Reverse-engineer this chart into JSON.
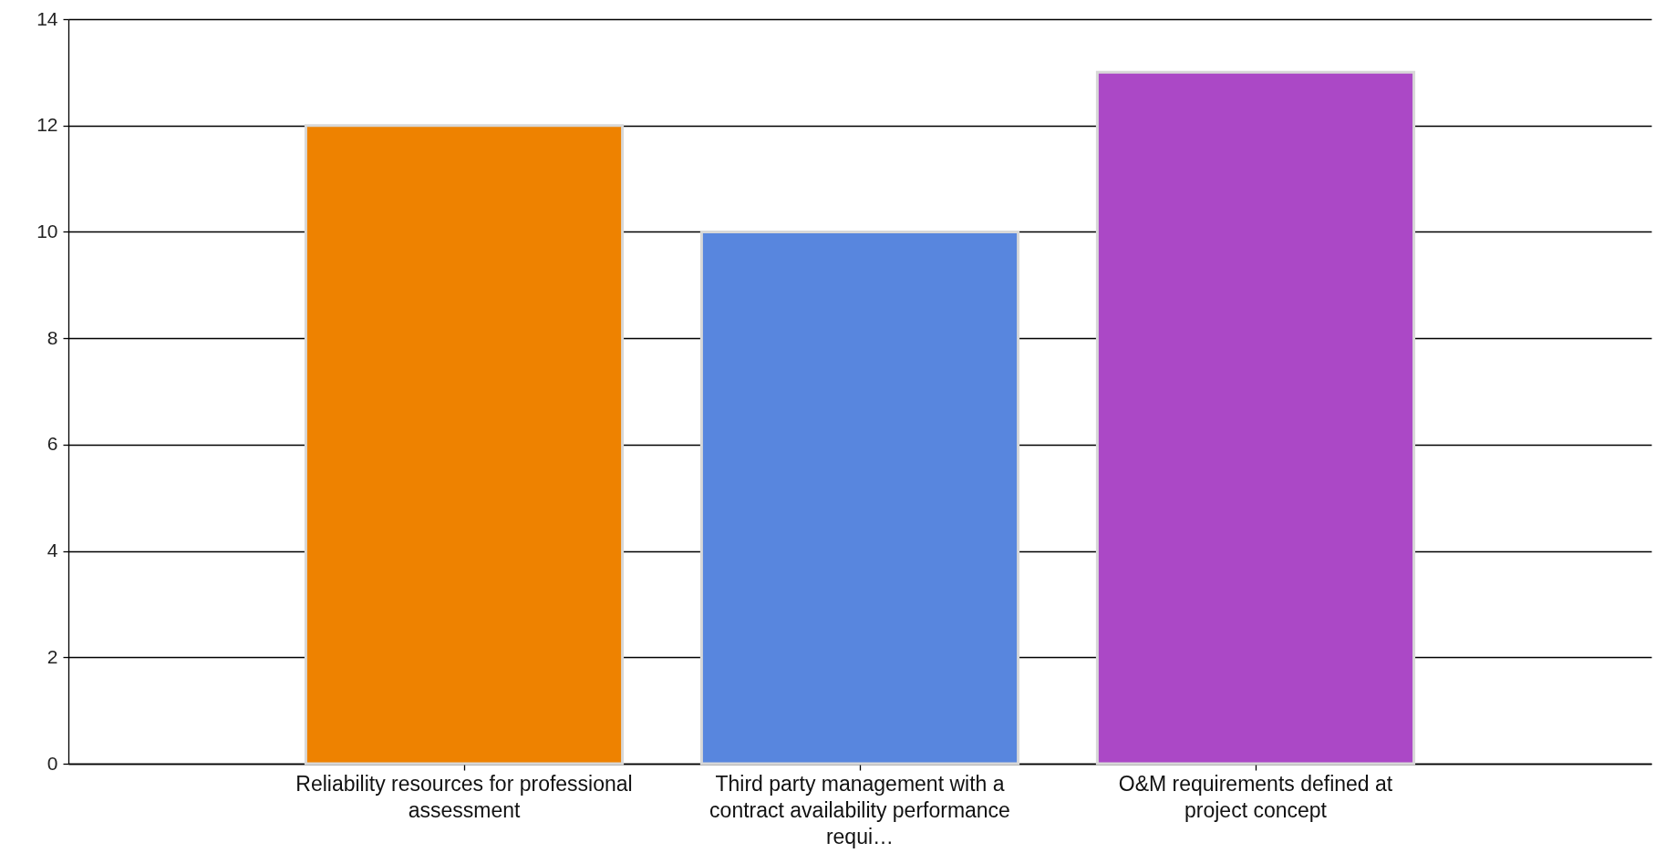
{
  "chart_data": {
    "type": "bar",
    "categories": [
      "Reliability resources for professional assessment",
      "Third party management with a contract availability performance requi…",
      "O&M requirements defined at project concept"
    ],
    "values": [
      12,
      10,
      13
    ],
    "colors": [
      "#ee8200",
      "#5886de",
      "#ab48c6"
    ],
    "ylim": [
      0,
      14
    ],
    "yticks": [
      0,
      2,
      4,
      6,
      8,
      10,
      12,
      14
    ],
    "grid": "y"
  }
}
